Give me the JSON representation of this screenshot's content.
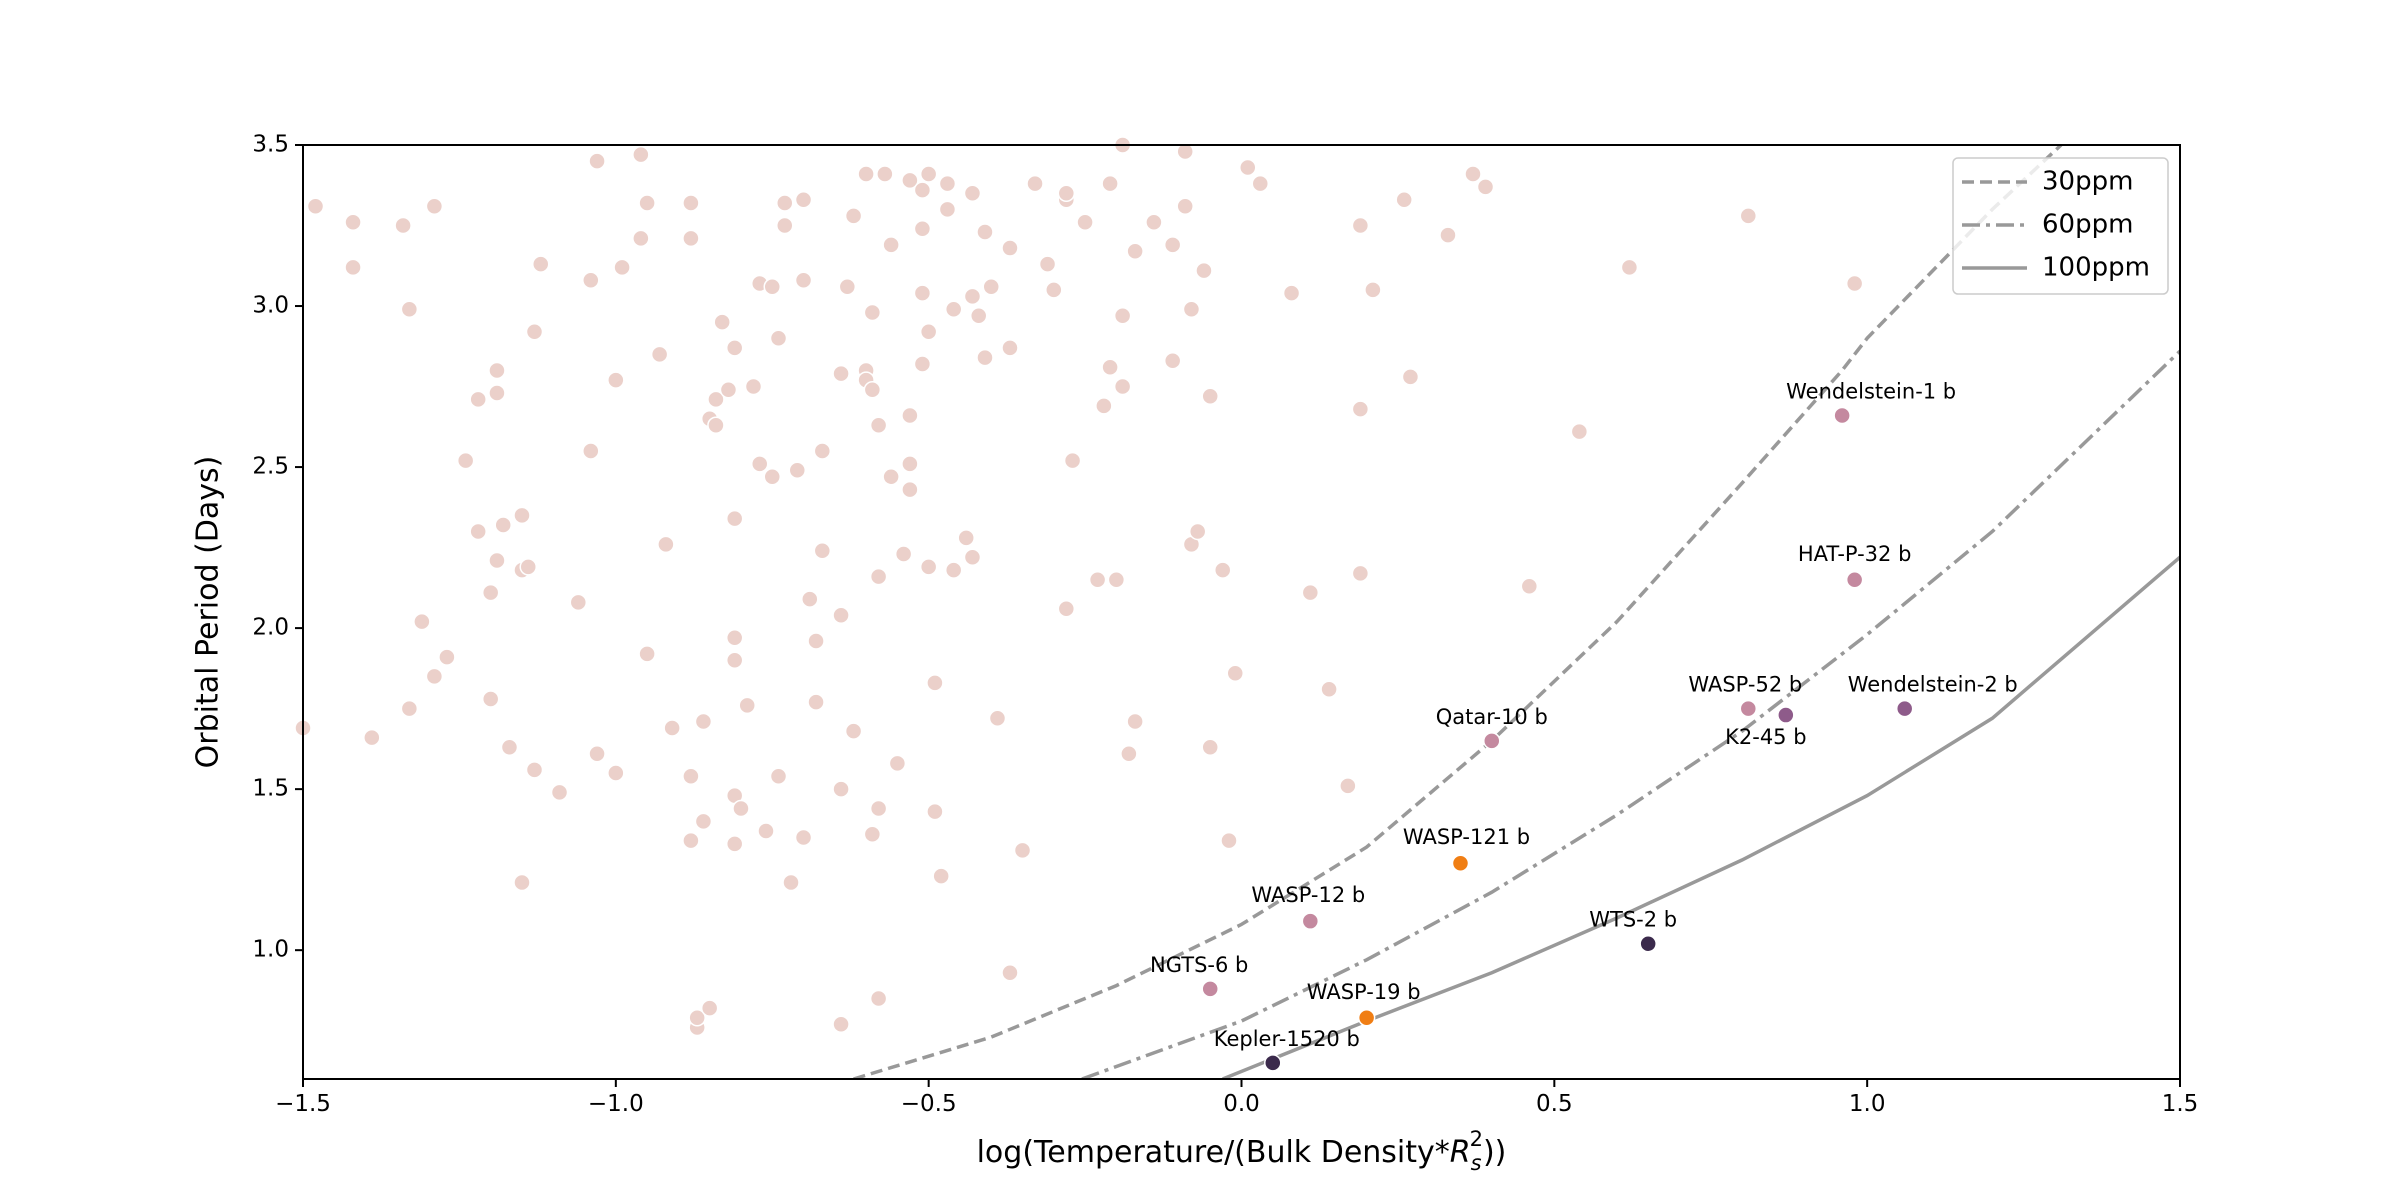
{
  "chart_data": {
    "type": "scatter",
    "xlabel": [
      "log(Temperature/(Bulk Density*",
      "R",
      "s",
      "2",
      "))"
    ],
    "ylabel": "Orbital Period (Days)",
    "xlim": [
      -1.5,
      1.5
    ],
    "ylim": [
      0.6,
      3.5
    ],
    "xticks": [
      {
        "value": -1.5,
        "label": "−1.5"
      },
      {
        "value": -1.0,
        "label": "−1.0"
      },
      {
        "value": -0.5,
        "label": "−0.5"
      },
      {
        "value": 0,
        "label": "0.0"
      },
      0.5,
      {
        "value": 1.0,
        "label": "1.0"
      },
      1.5
    ],
    "yticks": [
      {
        "value": 1.0,
        "label": "1.0"
      },
      1.5,
      {
        "value": 2.0,
        "label": "2.0"
      },
      2.5,
      {
        "value": 3.0,
        "label": "3.0"
      },
      3.5
    ],
    "legend": "upper right",
    "series": [
      {
        "color": "#ebd0ca",
        "x": [
          -1.48,
          -1.42,
          -1.42,
          -1.34,
          -1.33,
          -1.29,
          -1.5,
          -1.39,
          -1.33,
          -1.31,
          -1.29,
          -1.27,
          -1.24,
          -1.22,
          -1.22,
          -1.2,
          -1.2,
          -1.19,
          -1.19,
          -1.19,
          -1.18,
          -1.17,
          -1.15,
          -1.15,
          -1.15,
          -1.14,
          -1.13,
          -1.13,
          -1.12,
          -1.09,
          -1.06,
          -1.04,
          -1.03,
          -1.04,
          -1.03,
          -1.0,
          -1.0,
          -0.99,
          -0.96,
          -0.96,
          -0.95,
          -0.95,
          -0.93,
          -0.92,
          -0.91,
          -0.88,
          -0.88,
          -0.88,
          -0.88,
          -0.87,
          -0.87,
          -0.86,
          -0.86,
          -0.85,
          -0.85,
          -0.84,
          -0.84,
          -0.83,
          -0.82,
          -0.81,
          -0.81,
          -0.81,
          -0.81,
          -0.81,
          -0.81,
          -0.8,
          -0.79,
          -0.78,
          -0.77,
          -0.77,
          -0.76,
          -0.75,
          -0.75,
          -0.74,
          -0.74,
          -0.73,
          -0.73,
          -0.72,
          -0.71,
          -0.7,
          -0.7,
          -0.7,
          -0.69,
          -0.68,
          -0.68,
          -0.67,
          -0.67,
          -0.64,
          -0.64,
          -0.64,
          -0.64,
          -0.63,
          -0.62,
          -0.62,
          -0.6,
          -0.6,
          -0.6,
          -0.59,
          -0.59,
          -0.59,
          -0.58,
          -0.58,
          -0.58,
          -0.58,
          -0.57,
          -0.56,
          -0.56,
          -0.55,
          -0.54,
          -0.53,
          -0.53,
          -0.53,
          -0.53,
          -0.51,
          -0.51,
          -0.51,
          -0.51,
          -0.5,
          -0.5,
          -0.5,
          -0.49,
          -0.49,
          -0.48,
          -0.47,
          -0.47,
          -0.46,
          -0.46,
          -0.44,
          -0.43,
          -0.43,
          -0.43,
          -0.42,
          -0.41,
          -0.41,
          -0.4,
          -0.39,
          -0.37,
          -0.37,
          -0.37,
          -0.35,
          -0.33,
          -0.31,
          -0.3,
          -0.28,
          -0.28,
          -0.28,
          -0.27,
          -0.25,
          -0.23,
          -0.22,
          -0.21,
          -0.2,
          -0.21,
          -0.19,
          -0.19,
          -0.19,
          -0.18,
          -0.17,
          -0.17,
          -0.14,
          -0.11,
          -0.11,
          -0.09,
          -0.09,
          -0.08,
          -0.08,
          -0.07,
          -0.06,
          -0.05,
          -0.05,
          -0.03,
          -0.02,
          -0.01,
          0.01,
          0.03,
          0.08,
          0.11,
          0.14,
          0.17,
          0.19,
          0.19,
          0.19,
          0.21,
          0.26,
          0.27,
          0.33,
          0.37,
          0.39,
          0.46,
          0.54,
          0.62,
          0.81,
          0.98
        ],
        "values": [
          3.31,
          3.26,
          3.12,
          3.25,
          2.99,
          3.31,
          1.69,
          1.66,
          1.75,
          2.02,
          1.85,
          1.91,
          2.52,
          2.71,
          2.3,
          1.78,
          2.11,
          2.8,
          2.73,
          2.21,
          2.32,
          1.63,
          2.18,
          2.35,
          1.21,
          2.19,
          1.56,
          2.92,
          3.13,
          1.49,
          2.08,
          3.08,
          3.45,
          2.55,
          1.61,
          2.77,
          1.55,
          3.12,
          3.21,
          3.47,
          3.32,
          1.92,
          2.85,
          2.26,
          1.69,
          3.32,
          3.21,
          1.54,
          1.34,
          0.76,
          0.79,
          1.71,
          1.4,
          0.82,
          2.65,
          2.63,
          2.71,
          2.95,
          2.74,
          1.48,
          1.33,
          2.87,
          2.34,
          1.97,
          1.9,
          1.44,
          1.76,
          2.75,
          3.07,
          2.51,
          1.37,
          2.47,
          3.06,
          2.9,
          1.54,
          3.32,
          3.25,
          1.21,
          2.49,
          1.35,
          3.08,
          3.33,
          2.09,
          1.96,
          1.77,
          2.24,
          2.55,
          1.5,
          0.77,
          2.04,
          2.79,
          3.06,
          3.28,
          1.68,
          2.8,
          3.41,
          2.77,
          1.36,
          2.98,
          2.74,
          2.63,
          2.16,
          1.44,
          0.85,
          3.41,
          2.47,
          3.19,
          1.58,
          2.23,
          3.39,
          2.66,
          2.43,
          2.51,
          3.24,
          2.82,
          3.36,
          3.04,
          3.41,
          2.92,
          2.19,
          1.83,
          1.43,
          1.23,
          3.3,
          3.38,
          2.18,
          2.99,
          2.28,
          3.03,
          3.35,
          2.22,
          2.97,
          3.23,
          2.84,
          3.06,
          1.72,
          3.18,
          2.87,
          0.93,
          1.31,
          3.38,
          3.13,
          3.05,
          3.33,
          3.35,
          2.06,
          2.52,
          3.26,
          2.15,
          2.69,
          3.38,
          2.15,
          2.81,
          2.97,
          2.75,
          3.5,
          1.61,
          1.71,
          3.17,
          3.26,
          3.19,
          2.83,
          3.31,
          3.48,
          2.26,
          2.99,
          2.3,
          3.11,
          2.72,
          1.63,
          2.18,
          1.34,
          1.86,
          3.43,
          3.38,
          3.04,
          2.11,
          1.81,
          1.51,
          2.17,
          3.25,
          2.68,
          3.05,
          3.33,
          2.78,
          3.22,
          3.41,
          3.37,
          2.13,
          2.61,
          3.12,
          3.28,
          3.07
        ]
      },
      {
        "labels": [
          "Wendelstein-1 b",
          "HAT-P-32 b",
          "WASP-52 b",
          "K2-45 b",
          "Wendelstein-2 b",
          "Qatar-10 b",
          "WASP-121 b",
          "WASP-12 b",
          "WTS-2 b",
          "NGTS-6 b",
          "WASP-19 b",
          "Kepler-1520 b"
        ],
        "x": [
          0.96,
          0.98,
          0.81,
          0.87,
          1.06,
          0.4,
          0.35,
          0.11,
          0.65,
          -0.05,
          0.2,
          0.05
        ],
        "values": [
          2.66,
          2.15,
          1.75,
          1.73,
          1.75,
          1.65,
          1.27,
          1.09,
          1.02,
          0.88,
          0.79,
          0.65
        ],
        "colors": [
          "#c4899f",
          "#c4899f",
          "#c4899f",
          "#8e5b8a",
          "#8e5b8a",
          "#c4899f",
          "#f07e14",
          "#c4899f",
          "#3b2a4c",
          "#c4899f",
          "#f07e14",
          "#3b2a4c"
        ]
      }
    ],
    "lines": [
      {
        "name": "30ppm",
        "style": "dashed",
        "color": "#999999",
        "x": [
          -0.62,
          -0.4,
          -0.2,
          0,
          0.2,
          0.4,
          0.6,
          0.8,
          0.96,
          1.0,
          1.2,
          1.31
        ],
        "values": [
          0.6,
          0.73,
          0.89,
          1.08,
          1.32,
          1.65,
          2.02,
          2.45,
          2.8,
          2.9,
          3.3,
          3.5
        ]
      },
      {
        "name": "60ppm",
        "style": "dashdot",
        "color": "#999999",
        "x": [
          -0.255,
          0,
          0.2,
          0.4,
          0.6,
          0.8,
          1.0,
          1.2,
          1.5
        ],
        "values": [
          0.6,
          0.78,
          0.97,
          1.18,
          1.42,
          1.68,
          1.98,
          2.3,
          2.86
        ]
      },
      {
        "name": "100ppm",
        "style": "solid",
        "color": "#999999",
        "x": [
          -0.03,
          0.2,
          0.4,
          0.6,
          0.8,
          1.0,
          1.2,
          1.5
        ],
        "values": [
          0.6,
          0.78,
          0.93,
          1.1,
          1.28,
          1.48,
          1.72,
          2.22
        ]
      }
    ]
  }
}
